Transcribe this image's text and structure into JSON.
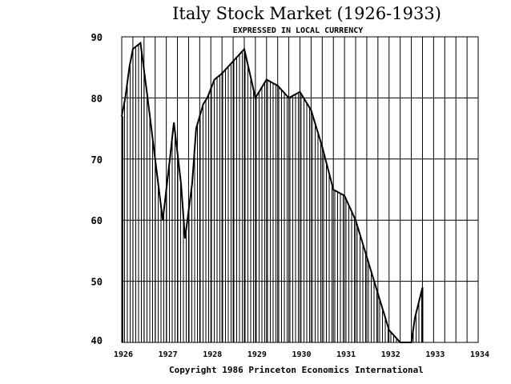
{
  "chart_data": {
    "type": "area",
    "title": "Italy Stock Market (1926-1933)",
    "subtitle": "EXPRESSED IN LOCAL CURRENCY",
    "xlabel": "",
    "ylabel": "",
    "footer": "Copyright 1986 Princeton Economics International",
    "xlim": [
      1926.0,
      1934.0
    ],
    "ylim": [
      40,
      90
    ],
    "x_ticks": [
      "1926",
      "1927",
      "1928",
      "1929",
      "1930",
      "1931",
      "1932",
      "1933",
      "1934"
    ],
    "y_ticks": [
      "40",
      "50",
      "60",
      "70",
      "80",
      "90"
    ],
    "grid": true,
    "fill_style": "vertical-hatch",
    "series": [
      {
        "x": [
          1926.0,
          1926.08,
          1926.17,
          1926.25,
          1926.42,
          1926.58,
          1926.75,
          1926.92,
          1927.08,
          1927.17,
          1927.33,
          1927.42,
          1927.58,
          1927.67,
          1927.83,
          1927.92,
          1928.08,
          1928.25,
          1928.5,
          1928.75,
          1929.0,
          1929.25,
          1929.5,
          1929.75,
          1930.0,
          1930.25,
          1930.5,
          1930.75,
          1931.0,
          1931.25,
          1931.5,
          1931.75,
          1932.0,
          1932.25,
          1932.5,
          1932.58,
          1932.75
        ],
        "values": [
          77,
          80,
          85,
          88,
          89,
          80,
          70,
          60,
          70,
          76,
          66,
          57,
          66,
          75,
          79,
          80,
          83,
          84,
          86,
          88,
          80,
          83,
          82,
          80,
          81,
          78,
          72,
          65,
          64,
          60,
          54,
          48,
          42,
          40,
          40,
          44,
          49
        ]
      }
    ]
  }
}
